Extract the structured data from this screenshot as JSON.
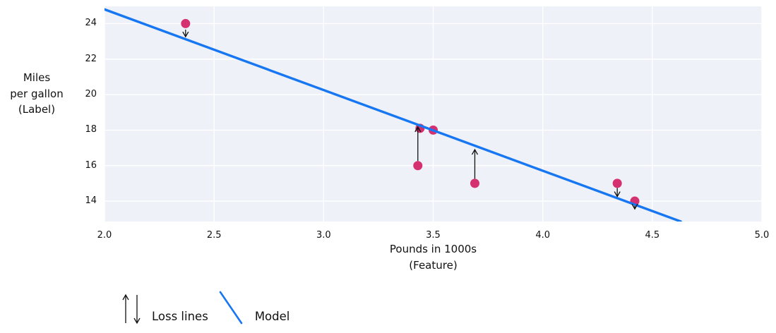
{
  "chart_data": {
    "type": "scatter",
    "title": "",
    "xlabel_lines": [
      "Pounds in 1000s",
      "(Feature)"
    ],
    "ylabel_lines": [
      "Miles",
      "per gallon",
      "(Label)"
    ],
    "xlim": [
      2.0,
      5.0
    ],
    "ylim": [
      12.85,
      24.97
    ],
    "xticks": [
      2.0,
      2.5,
      3.0,
      3.5,
      4.0,
      4.5,
      5.0
    ],
    "xtick_labels": [
      "2.0",
      "2.5",
      "3.0",
      "3.5",
      "4.0",
      "4.5",
      "5.0"
    ],
    "yticks": [
      14,
      16,
      18,
      20,
      22,
      24
    ],
    "ytick_labels": [
      "14",
      "16",
      "18",
      "20",
      "22",
      "24"
    ],
    "grid": true,
    "points": [
      {
        "x": 2.37,
        "y": 24.0
      },
      {
        "x": 3.43,
        "y": 16.0
      },
      {
        "x": 3.44,
        "y": 18.1
      },
      {
        "x": 3.5,
        "y": 18.0
      },
      {
        "x": 3.69,
        "y": 15.0
      },
      {
        "x": 4.34,
        "y": 15.0
      },
      {
        "x": 4.42,
        "y": 14.0
      }
    ],
    "model_line": {
      "x1": 2.0,
      "y1": 24.8,
      "x2": 4.63,
      "y2": 12.85
    },
    "loss_arrows": [
      {
        "x": 2.37,
        "from": 23.66,
        "to": 23.26,
        "direction": "down"
      },
      {
        "x": 3.43,
        "from": 16.26,
        "to": 18.18,
        "direction": "up"
      },
      {
        "x": 3.69,
        "from": 15.26,
        "to": 16.9,
        "direction": "up"
      },
      {
        "x": 4.34,
        "from": 14.74,
        "to": 14.26,
        "direction": "down"
      },
      {
        "x": 4.42,
        "from": 13.74,
        "to": 13.56,
        "direction": "down"
      }
    ],
    "colors": {
      "plot_background": "#eef1f7",
      "gridline": "#ffffff",
      "model_line": "#1777f2",
      "point": "#d5306f",
      "loss_arrow": "#111111",
      "text": "#111111"
    },
    "legend_position": "bottom-left"
  },
  "legend": {
    "loss_label": "Loss lines",
    "model_label": "Model"
  }
}
